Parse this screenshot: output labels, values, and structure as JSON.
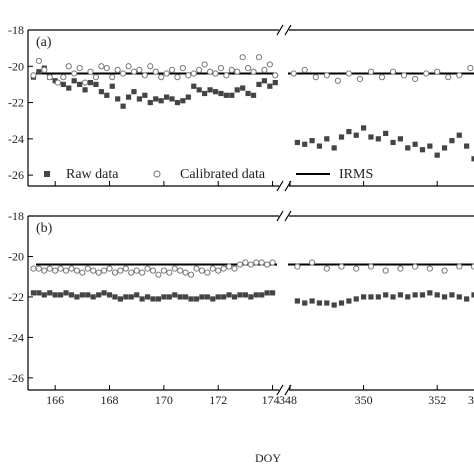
{
  "chart_data": {
    "type": "scatter",
    "xlabel": "DOY",
    "x_tick_labels": {
      "left_segment": [
        "166",
        "168",
        "170",
        "172",
        "174"
      ],
      "right_segment": [
        "348",
        "350",
        "352",
        "3"
      ]
    },
    "x_segments": [
      [
        165,
        174.2
      ],
      [
        348,
        353
      ]
    ],
    "y_tick_labels": [
      "-18",
      "-20",
      "-22",
      "-24",
      "-26"
    ],
    "ylim": [
      -26.6,
      -18
    ],
    "grid": false,
    "axis_break": true,
    "legend": {
      "placement": "bottom-left of panel (a)",
      "entries": [
        "Raw data",
        "Calibrated data",
        "IRMS"
      ]
    },
    "colors": {
      "raw": "#444444",
      "calibrated": "#777777",
      "irms": "#000000",
      "axis": "#000000"
    },
    "panels": [
      {
        "label": "(a)",
        "irms": -20.4,
        "series": [
          {
            "name": "Raw data",
            "marker": "filled-square",
            "x": [
              165.2,
              165.4,
              165.6,
              165.8,
              166.0,
              166.3,
              166.5,
              166.7,
              166.9,
              167.1,
              167.3,
              167.5,
              167.7,
              167.9,
              168.1,
              168.3,
              168.5,
              168.7,
              168.9,
              169.1,
              169.3,
              169.5,
              169.7,
              169.9,
              170.1,
              170.3,
              170.5,
              170.7,
              170.9,
              171.1,
              171.3,
              171.5,
              171.7,
              171.9,
              172.1,
              172.3,
              172.5,
              172.7,
              172.9,
              173.1,
              173.3,
              173.5,
              173.7,
              173.9,
              174.1,
              348.2,
              348.4,
              348.6,
              348.8,
              349.0,
              349.2,
              349.4,
              349.6,
              349.8,
              350.0,
              350.2,
              350.4,
              350.6,
              350.8,
              351.0,
              351.2,
              351.4,
              351.6,
              351.8,
              352.0,
              352.2,
              352.4,
              352.6,
              352.8,
              353.0
            ],
            "y": [
              -20.6,
              -20.3,
              -20.1,
              -20.6,
              -20.8,
              -21.0,
              -21.2,
              -20.8,
              -21.0,
              -21.3,
              -20.9,
              -21.0,
              -21.4,
              -21.6,
              -21.1,
              -21.8,
              -22.2,
              -21.7,
              -21.4,
              -21.8,
              -21.6,
              -22.0,
              -21.8,
              -21.9,
              -21.7,
              -21.8,
              -22.0,
              -21.9,
              -21.7,
              -21.1,
              -21.3,
              -21.5,
              -21.3,
              -21.4,
              -21.5,
              -21.6,
              -21.6,
              -21.3,
              -21.2,
              -21.5,
              -21.6,
              -21.0,
              -20.8,
              -21.1,
              -20.9,
              -24.2,
              -24.3,
              -24.1,
              -24.4,
              -24.0,
              -24.5,
              -23.9,
              -23.6,
              -23.8,
              -23.4,
              -23.9,
              -24.0,
              -23.7,
              -24.2,
              -24.0,
              -24.5,
              -24.3,
              -24.6,
              -24.4,
              -24.9,
              -24.5,
              -24.1,
              -23.8,
              -24.4,
              -25.1
            ]
          },
          {
            "name": "Calibrated data",
            "marker": "open-circle",
            "x": [
              165.0,
              165.2,
              165.4,
              165.6,
              165.8,
              166.1,
              166.3,
              166.5,
              166.7,
              166.9,
              167.1,
              167.3,
              167.5,
              167.7,
              167.9,
              168.1,
              168.3,
              168.5,
              168.7,
              168.9,
              169.1,
              169.3,
              169.5,
              169.7,
              169.9,
              170.1,
              170.3,
              170.5,
              170.7,
              170.9,
              171.1,
              171.3,
              171.5,
              171.7,
              171.9,
              172.1,
              172.3,
              172.5,
              172.7,
              172.9,
              173.1,
              173.3,
              173.5,
              173.7,
              173.9,
              174.1,
              348.1,
              348.4,
              348.7,
              349.0,
              349.3,
              349.6,
              349.9,
              350.2,
              350.5,
              350.8,
              351.1,
              351.4,
              351.7,
              352.0,
              352.3,
              352.6,
              352.9
            ],
            "y": [
              -20.8,
              -20.5,
              -19.7,
              -20.2,
              -20.6,
              -20.9,
              -20.6,
              -20.0,
              -20.4,
              -20.1,
              -20.9,
              -20.3,
              -20.6,
              -20.0,
              -20.1,
              -20.6,
              -20.2,
              -20.4,
              -20.0,
              -20.3,
              -20.2,
              -20.5,
              -20.0,
              -20.3,
              -20.6,
              -20.4,
              -20.2,
              -20.6,
              -20.1,
              -20.5,
              -20.4,
              -20.2,
              -19.9,
              -20.3,
              -20.4,
              -20.1,
              -20.5,
              -20.2,
              -20.3,
              -19.5,
              -20.1,
              -20.3,
              -19.5,
              -20.2,
              -19.9,
              -20.5,
              -20.4,
              -20.2,
              -20.6,
              -20.5,
              -20.8,
              -20.4,
              -20.7,
              -20.3,
              -20.6,
              -20.3,
              -20.5,
              -20.7,
              -20.4,
              -20.3,
              -20.6,
              -20.5,
              -20.1
            ]
          }
        ]
      },
      {
        "label": "(b)",
        "irms": -20.4,
        "series": [
          {
            "name": "Raw data",
            "marker": "filled-square",
            "x": [
              165.2,
              165.4,
              165.6,
              165.8,
              166.0,
              166.2,
              166.4,
              166.6,
              166.8,
              167.0,
              167.2,
              167.4,
              167.6,
              167.8,
              168.0,
              168.2,
              168.4,
              168.6,
              168.8,
              169.0,
              169.2,
              169.4,
              169.6,
              169.8,
              170.0,
              170.2,
              170.4,
              170.6,
              170.8,
              171.0,
              171.2,
              171.4,
              171.6,
              171.8,
              172.0,
              172.2,
              172.4,
              172.6,
              172.8,
              173.0,
              173.2,
              173.4,
              173.6,
              173.8,
              174.0,
              348.2,
              348.4,
              348.6,
              348.8,
              349.0,
              349.2,
              349.4,
              349.6,
              349.8,
              350.0,
              350.2,
              350.4,
              350.6,
              350.8,
              351.0,
              351.2,
              351.4,
              351.6,
              351.8,
              352.0,
              352.2,
              352.4,
              352.6,
              352.8,
              353.0
            ],
            "y": [
              -21.8,
              -21.8,
              -21.9,
              -21.8,
              -21.9,
              -21.9,
              -21.8,
              -21.9,
              -22.0,
              -21.9,
              -21.9,
              -22.0,
              -21.9,
              -21.8,
              -21.9,
              -22.0,
              -22.1,
              -22.0,
              -22.0,
              -21.9,
              -22.1,
              -22.0,
              -22.1,
              -22.1,
              -22.0,
              -22.0,
              -21.9,
              -22.0,
              -22.0,
              -22.1,
              -22.1,
              -22.0,
              -22.0,
              -22.1,
              -22.0,
              -22.0,
              -21.9,
              -22.0,
              -21.9,
              -21.9,
              -22.0,
              -21.9,
              -21.9,
              -21.8,
              -21.8,
              -22.2,
              -22.3,
              -22.2,
              -22.3,
              -22.3,
              -22.4,
              -22.3,
              -22.2,
              -22.1,
              -22.0,
              -22.0,
              -22.0,
              -21.9,
              -22.0,
              -21.9,
              -22.0,
              -21.9,
              -21.9,
              -21.8,
              -21.9,
              -22.0,
              -21.9,
              -22.0,
              -22.1,
              -21.9
            ]
          },
          {
            "name": "Calibrated data",
            "marker": "open-circle",
            "x": [
              165.0,
              165.2,
              165.4,
              165.6,
              165.8,
              166.0,
              166.2,
              166.4,
              166.6,
              166.8,
              167.0,
              167.2,
              167.4,
              167.6,
              167.8,
              168.0,
              168.2,
              168.4,
              168.6,
              168.8,
              169.0,
              169.2,
              169.4,
              169.6,
              169.8,
              170.0,
              170.2,
              170.4,
              170.6,
              170.8,
              171.0,
              171.2,
              171.4,
              171.6,
              171.8,
              172.0,
              172.2,
              172.4,
              172.6,
              172.8,
              173.0,
              173.2,
              173.4,
              173.6,
              173.8,
              174.0,
              348.2,
              348.6,
              349.0,
              349.4,
              349.8,
              350.2,
              350.6,
              351.0,
              351.4,
              351.8,
              352.2,
              352.6,
              353.0
            ],
            "y": [
              -20.7,
              -20.6,
              -20.6,
              -20.7,
              -20.6,
              -20.7,
              -20.6,
              -20.7,
              -20.6,
              -20.7,
              -20.8,
              -20.6,
              -20.7,
              -20.8,
              -20.7,
              -20.6,
              -20.8,
              -20.7,
              -20.6,
              -20.8,
              -20.7,
              -20.8,
              -20.6,
              -20.7,
              -20.9,
              -20.7,
              -20.8,
              -20.6,
              -20.7,
              -20.8,
              -20.9,
              -20.6,
              -20.7,
              -20.8,
              -20.6,
              -20.7,
              -20.6,
              -20.5,
              -20.6,
              -20.4,
              -20.3,
              -20.4,
              -20.3,
              -20.3,
              -20.4,
              -20.3,
              -20.5,
              -20.3,
              -20.6,
              -20.5,
              -20.6,
              -20.5,
              -20.7,
              -20.6,
              -20.5,
              -20.6,
              -20.7,
              -20.5,
              -20.5
            ]
          }
        ]
      }
    ]
  }
}
